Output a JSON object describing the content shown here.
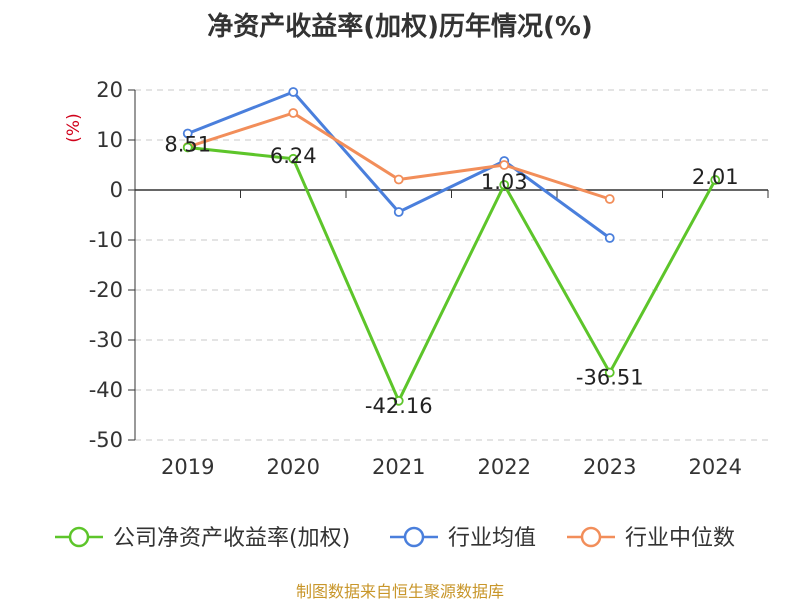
{
  "chart_data": {
    "type": "line",
    "title": "净资产收益率(加权)历年情况(%)",
    "ylabel": "(%)",
    "categories": [
      "2019",
      "2020",
      "2021",
      "2022",
      "2023",
      "2024"
    ],
    "ylim": [
      -50,
      20
    ],
    "yticks": [
      20,
      10,
      0,
      -10,
      -20,
      -30,
      -40,
      -50
    ],
    "grid": true,
    "legend_position": "bottom",
    "series": [
      {
        "name": "公司净资产收益率(加权)",
        "color": "#5dc52a",
        "values": [
          8.51,
          6.24,
          -42.16,
          1.03,
          -36.51,
          2.01
        ],
        "labels": [
          "8.51",
          "6.24",
          "-42.16",
          "1.03",
          "-36.51",
          "2.01"
        ]
      },
      {
        "name": "行业均值",
        "color": "#4a7fdc",
        "values": [
          11.3,
          19.6,
          -4.4,
          5.8,
          -9.6,
          null
        ]
      },
      {
        "name": "行业中位数",
        "color": "#f28e5a",
        "values": [
          8.6,
          15.4,
          2.1,
          5.0,
          -1.8,
          null
        ]
      }
    ]
  },
  "source": "制图数据来自恒生聚源数据库"
}
